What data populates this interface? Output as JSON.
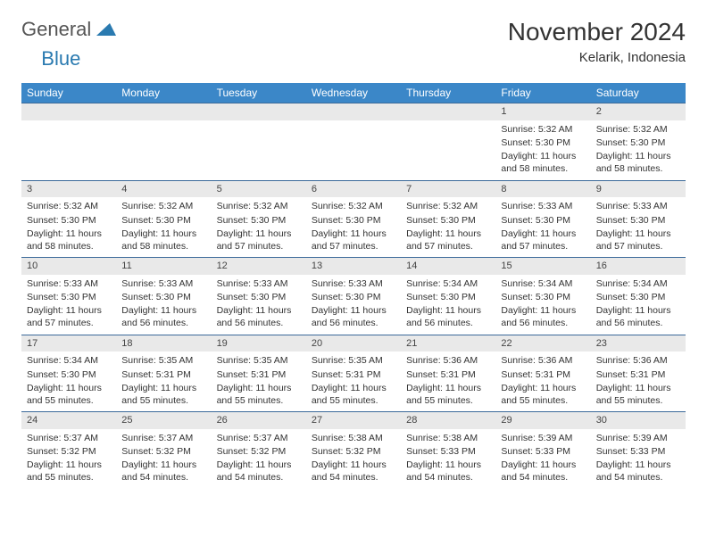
{
  "logo": {
    "text1": "General",
    "text2": "Blue"
  },
  "title": "November 2024",
  "location": "Kelarik, Indonesia",
  "colors": {
    "header_blue": "#3b87c8",
    "border_blue": "#3b6a9a",
    "daynum_bg": "#e9e9e9",
    "logo_blue": "#2a7ab0"
  },
  "weekdays": [
    "Sunday",
    "Monday",
    "Tuesday",
    "Wednesday",
    "Thursday",
    "Friday",
    "Saturday"
  ],
  "weeks": [
    [
      null,
      null,
      null,
      null,
      null,
      {
        "n": "1",
        "sr": "Sunrise: 5:32 AM",
        "ss": "Sunset: 5:30 PM",
        "dl": "Daylight: 11 hours and 58 minutes."
      },
      {
        "n": "2",
        "sr": "Sunrise: 5:32 AM",
        "ss": "Sunset: 5:30 PM",
        "dl": "Daylight: 11 hours and 58 minutes."
      }
    ],
    [
      {
        "n": "3",
        "sr": "Sunrise: 5:32 AM",
        "ss": "Sunset: 5:30 PM",
        "dl": "Daylight: 11 hours and 58 minutes."
      },
      {
        "n": "4",
        "sr": "Sunrise: 5:32 AM",
        "ss": "Sunset: 5:30 PM",
        "dl": "Daylight: 11 hours and 58 minutes."
      },
      {
        "n": "5",
        "sr": "Sunrise: 5:32 AM",
        "ss": "Sunset: 5:30 PM",
        "dl": "Daylight: 11 hours and 57 minutes."
      },
      {
        "n": "6",
        "sr": "Sunrise: 5:32 AM",
        "ss": "Sunset: 5:30 PM",
        "dl": "Daylight: 11 hours and 57 minutes."
      },
      {
        "n": "7",
        "sr": "Sunrise: 5:32 AM",
        "ss": "Sunset: 5:30 PM",
        "dl": "Daylight: 11 hours and 57 minutes."
      },
      {
        "n": "8",
        "sr": "Sunrise: 5:33 AM",
        "ss": "Sunset: 5:30 PM",
        "dl": "Daylight: 11 hours and 57 minutes."
      },
      {
        "n": "9",
        "sr": "Sunrise: 5:33 AM",
        "ss": "Sunset: 5:30 PM",
        "dl": "Daylight: 11 hours and 57 minutes."
      }
    ],
    [
      {
        "n": "10",
        "sr": "Sunrise: 5:33 AM",
        "ss": "Sunset: 5:30 PM",
        "dl": "Daylight: 11 hours and 57 minutes."
      },
      {
        "n": "11",
        "sr": "Sunrise: 5:33 AM",
        "ss": "Sunset: 5:30 PM",
        "dl": "Daylight: 11 hours and 56 minutes."
      },
      {
        "n": "12",
        "sr": "Sunrise: 5:33 AM",
        "ss": "Sunset: 5:30 PM",
        "dl": "Daylight: 11 hours and 56 minutes."
      },
      {
        "n": "13",
        "sr": "Sunrise: 5:33 AM",
        "ss": "Sunset: 5:30 PM",
        "dl": "Daylight: 11 hours and 56 minutes."
      },
      {
        "n": "14",
        "sr": "Sunrise: 5:34 AM",
        "ss": "Sunset: 5:30 PM",
        "dl": "Daylight: 11 hours and 56 minutes."
      },
      {
        "n": "15",
        "sr": "Sunrise: 5:34 AM",
        "ss": "Sunset: 5:30 PM",
        "dl": "Daylight: 11 hours and 56 minutes."
      },
      {
        "n": "16",
        "sr": "Sunrise: 5:34 AM",
        "ss": "Sunset: 5:30 PM",
        "dl": "Daylight: 11 hours and 56 minutes."
      }
    ],
    [
      {
        "n": "17",
        "sr": "Sunrise: 5:34 AM",
        "ss": "Sunset: 5:30 PM",
        "dl": "Daylight: 11 hours and 55 minutes."
      },
      {
        "n": "18",
        "sr": "Sunrise: 5:35 AM",
        "ss": "Sunset: 5:31 PM",
        "dl": "Daylight: 11 hours and 55 minutes."
      },
      {
        "n": "19",
        "sr": "Sunrise: 5:35 AM",
        "ss": "Sunset: 5:31 PM",
        "dl": "Daylight: 11 hours and 55 minutes."
      },
      {
        "n": "20",
        "sr": "Sunrise: 5:35 AM",
        "ss": "Sunset: 5:31 PM",
        "dl": "Daylight: 11 hours and 55 minutes."
      },
      {
        "n": "21",
        "sr": "Sunrise: 5:36 AM",
        "ss": "Sunset: 5:31 PM",
        "dl": "Daylight: 11 hours and 55 minutes."
      },
      {
        "n": "22",
        "sr": "Sunrise: 5:36 AM",
        "ss": "Sunset: 5:31 PM",
        "dl": "Daylight: 11 hours and 55 minutes."
      },
      {
        "n": "23",
        "sr": "Sunrise: 5:36 AM",
        "ss": "Sunset: 5:31 PM",
        "dl": "Daylight: 11 hours and 55 minutes."
      }
    ],
    [
      {
        "n": "24",
        "sr": "Sunrise: 5:37 AM",
        "ss": "Sunset: 5:32 PM",
        "dl": "Daylight: 11 hours and 55 minutes."
      },
      {
        "n": "25",
        "sr": "Sunrise: 5:37 AM",
        "ss": "Sunset: 5:32 PM",
        "dl": "Daylight: 11 hours and 54 minutes."
      },
      {
        "n": "26",
        "sr": "Sunrise: 5:37 AM",
        "ss": "Sunset: 5:32 PM",
        "dl": "Daylight: 11 hours and 54 minutes."
      },
      {
        "n": "27",
        "sr": "Sunrise: 5:38 AM",
        "ss": "Sunset: 5:32 PM",
        "dl": "Daylight: 11 hours and 54 minutes."
      },
      {
        "n": "28",
        "sr": "Sunrise: 5:38 AM",
        "ss": "Sunset: 5:33 PM",
        "dl": "Daylight: 11 hours and 54 minutes."
      },
      {
        "n": "29",
        "sr": "Sunrise: 5:39 AM",
        "ss": "Sunset: 5:33 PM",
        "dl": "Daylight: 11 hours and 54 minutes."
      },
      {
        "n": "30",
        "sr": "Sunrise: 5:39 AM",
        "ss": "Sunset: 5:33 PM",
        "dl": "Daylight: 11 hours and 54 minutes."
      }
    ]
  ]
}
